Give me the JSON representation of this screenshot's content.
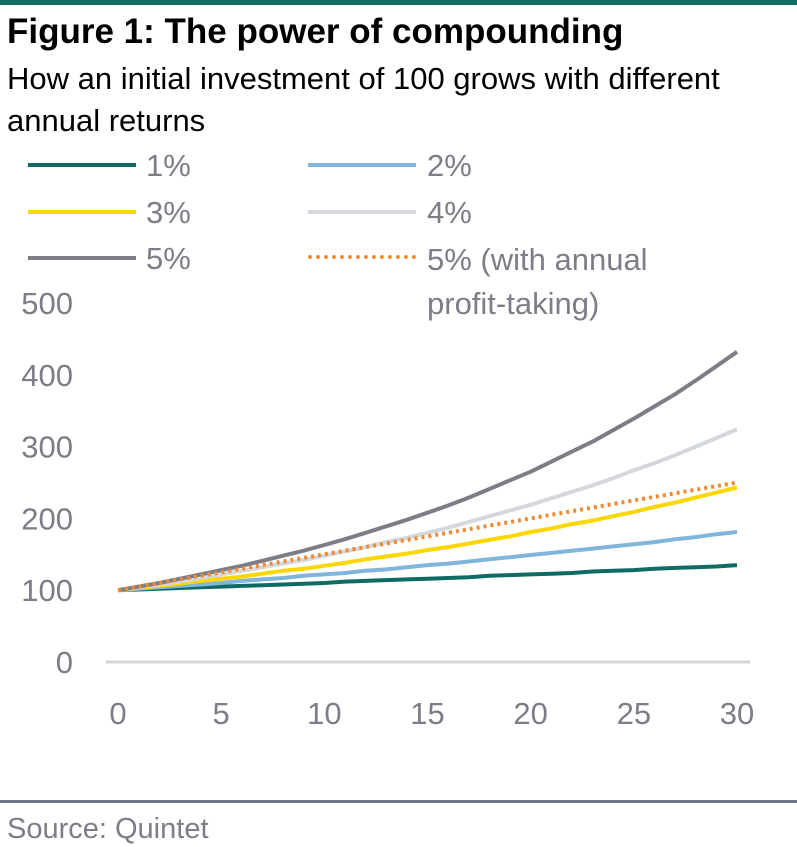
{
  "header": {
    "title": "Figure 1: The power of compounding",
    "subtitle": "How an initial investment of 100 grows with different annual returns"
  },
  "source": "Source: Quintet",
  "colors": {
    "rule": "#0f6b63",
    "text_muted": "#7b7e86",
    "axis": "#d4d6d9"
  },
  "chart_data": {
    "type": "line",
    "title": "Figure 1: The power of compounding",
    "subtitle": "How an initial investment of 100 grows with different annual returns",
    "xlabel": "",
    "ylabel": "",
    "xlim": [
      0,
      30
    ],
    "ylim": [
      0,
      500
    ],
    "xticks": [
      0,
      5,
      10,
      15,
      20,
      25,
      30
    ],
    "yticks": [
      0,
      100,
      200,
      300,
      400,
      500
    ],
    "grid": false,
    "legend_position": "top",
    "x": [
      0,
      1,
      2,
      3,
      4,
      5,
      6,
      7,
      8,
      9,
      10,
      11,
      12,
      13,
      14,
      15,
      16,
      17,
      18,
      19,
      20,
      21,
      22,
      23,
      24,
      25,
      26,
      27,
      28,
      29,
      30
    ],
    "series": [
      {
        "name": "1%",
        "color": "#0f6b63",
        "style": "solid",
        "rate": 0.01,
        "values": [
          100,
          101,
          102,
          103,
          104,
          105,
          106,
          107,
          108,
          109,
          110,
          112,
          113,
          114,
          115,
          116,
          117,
          118,
          120,
          121,
          122,
          123,
          124,
          126,
          127,
          128,
          130,
          131,
          132,
          133,
          135
        ]
      },
      {
        "name": "2%",
        "color": "#7fb6d9",
        "style": "solid",
        "rate": 0.02,
        "values": [
          100,
          102,
          104,
          106,
          108,
          110,
          113,
          115,
          117,
          120,
          122,
          124,
          127,
          129,
          132,
          135,
          137,
          140,
          143,
          146,
          149,
          152,
          155,
          158,
          161,
          164,
          167,
          171,
          174,
          178,
          181
        ]
      },
      {
        "name": "3%",
        "color": "#fad700",
        "style": "solid",
        "rate": 0.03,
        "values": [
          100,
          103,
          106,
          109,
          113,
          116,
          119,
          123,
          127,
          130,
          134,
          138,
          143,
          147,
          151,
          156,
          160,
          165,
          170,
          175,
          181,
          186,
          192,
          197,
          203,
          209,
          216,
          222,
          229,
          236,
          243
        ]
      },
      {
        "name": "4%",
        "color": "#d4d8dd",
        "style": "solid",
        "rate": 0.04,
        "values": [
          100,
          104,
          108,
          112,
          117,
          122,
          127,
          132,
          137,
          142,
          148,
          154,
          160,
          167,
          173,
          180,
          187,
          195,
          203,
          211,
          219,
          228,
          237,
          246,
          256,
          267,
          277,
          288,
          300,
          312,
          324
        ]
      },
      {
        "name": "5%",
        "color": "#7b7e86",
        "style": "solid",
        "rate": 0.05,
        "values": [
          100,
          105,
          110,
          116,
          122,
          128,
          134,
          141,
          148,
          155,
          163,
          171,
          180,
          189,
          198,
          208,
          218,
          229,
          241,
          253,
          265,
          279,
          293,
          307,
          323,
          339,
          356,
          373,
          392,
          412,
          432
        ]
      },
      {
        "name": "5% (with annual profit-taking)",
        "color": "#ee8a33",
        "style": "dotted",
        "rate": 0.05,
        "values": [
          100,
          105,
          110,
          115,
          120,
          125,
          130,
          135,
          140,
          145,
          150,
          155,
          160,
          165,
          170,
          175,
          180,
          185,
          190,
          195,
          200,
          205,
          210,
          215,
          220,
          225,
          230,
          235,
          240,
          245,
          250
        ]
      }
    ]
  }
}
